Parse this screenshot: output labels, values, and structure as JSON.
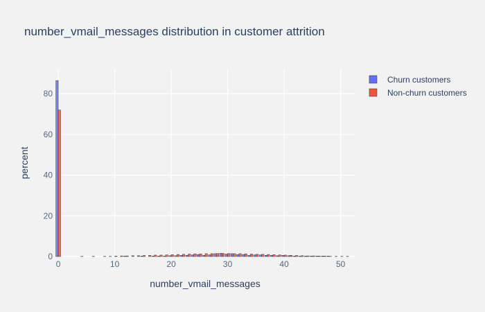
{
  "chart_data": {
    "type": "bar",
    "title": "number_vmail_messages distribution in customer attrition",
    "xlabel": "number_vmail_messages",
    "ylabel": "percent",
    "xlim": [
      -0.5,
      52.5
    ],
    "ylim": [
      0,
      92
    ],
    "x_ticks": [
      0,
      10,
      20,
      30,
      40,
      50
    ],
    "y_ticks": [
      0,
      20,
      40,
      60,
      80
    ],
    "grid": true,
    "legend_position": "top-right",
    "series": [
      {
        "name": "Churn customers",
        "color": "#636efa",
        "x": [
          0,
          12,
          15,
          17,
          18,
          19,
          20,
          21,
          22,
          23,
          24,
          25,
          26,
          27,
          28,
          29,
          30,
          31,
          32,
          33,
          34,
          35,
          36,
          37,
          38,
          39,
          40,
          41,
          42,
          43,
          44,
          45,
          46,
          47,
          48
        ],
        "values": [
          86.5,
          0.2,
          0.2,
          0.2,
          0.2,
          0.2,
          0.4,
          0.4,
          0.6,
          0.6,
          0.8,
          1.0,
          0.6,
          0.8,
          1.4,
          1.6,
          1.2,
          1.4,
          1.0,
          1.0,
          0.6,
          0.8,
          0.8,
          0.6,
          0.6,
          0.4,
          0.6,
          0.4,
          0.2,
          0.2,
          0.2,
          0.2,
          0.2,
          0.2,
          0.2
        ]
      },
      {
        "name": "Non-churn customers",
        "color": "#ef553b",
        "x": [
          0,
          4,
          6,
          8,
          9,
          10,
          11,
          12,
          13,
          14,
          15,
          16,
          17,
          18,
          19,
          20,
          21,
          22,
          23,
          24,
          25,
          26,
          27,
          28,
          29,
          30,
          31,
          32,
          33,
          34,
          35,
          36,
          37,
          38,
          39,
          40,
          41,
          42,
          43,
          44,
          45,
          46,
          47,
          48,
          49,
          50,
          51
        ],
        "values": [
          72.0,
          0.1,
          0.1,
          0.1,
          0.1,
          0.2,
          0.3,
          0.3,
          0.4,
          0.4,
          0.5,
          0.6,
          0.7,
          0.7,
          0.8,
          0.9,
          1.0,
          1.1,
          1.2,
          1.3,
          1.3,
          1.4,
          1.4,
          1.5,
          1.5,
          1.5,
          1.4,
          1.4,
          1.3,
          1.2,
          1.1,
          1.1,
          1.0,
          0.9,
          0.8,
          0.7,
          0.6,
          0.5,
          0.4,
          0.3,
          0.3,
          0.2,
          0.2,
          0.1,
          0.1,
          0.1,
          0.1
        ]
      }
    ]
  }
}
